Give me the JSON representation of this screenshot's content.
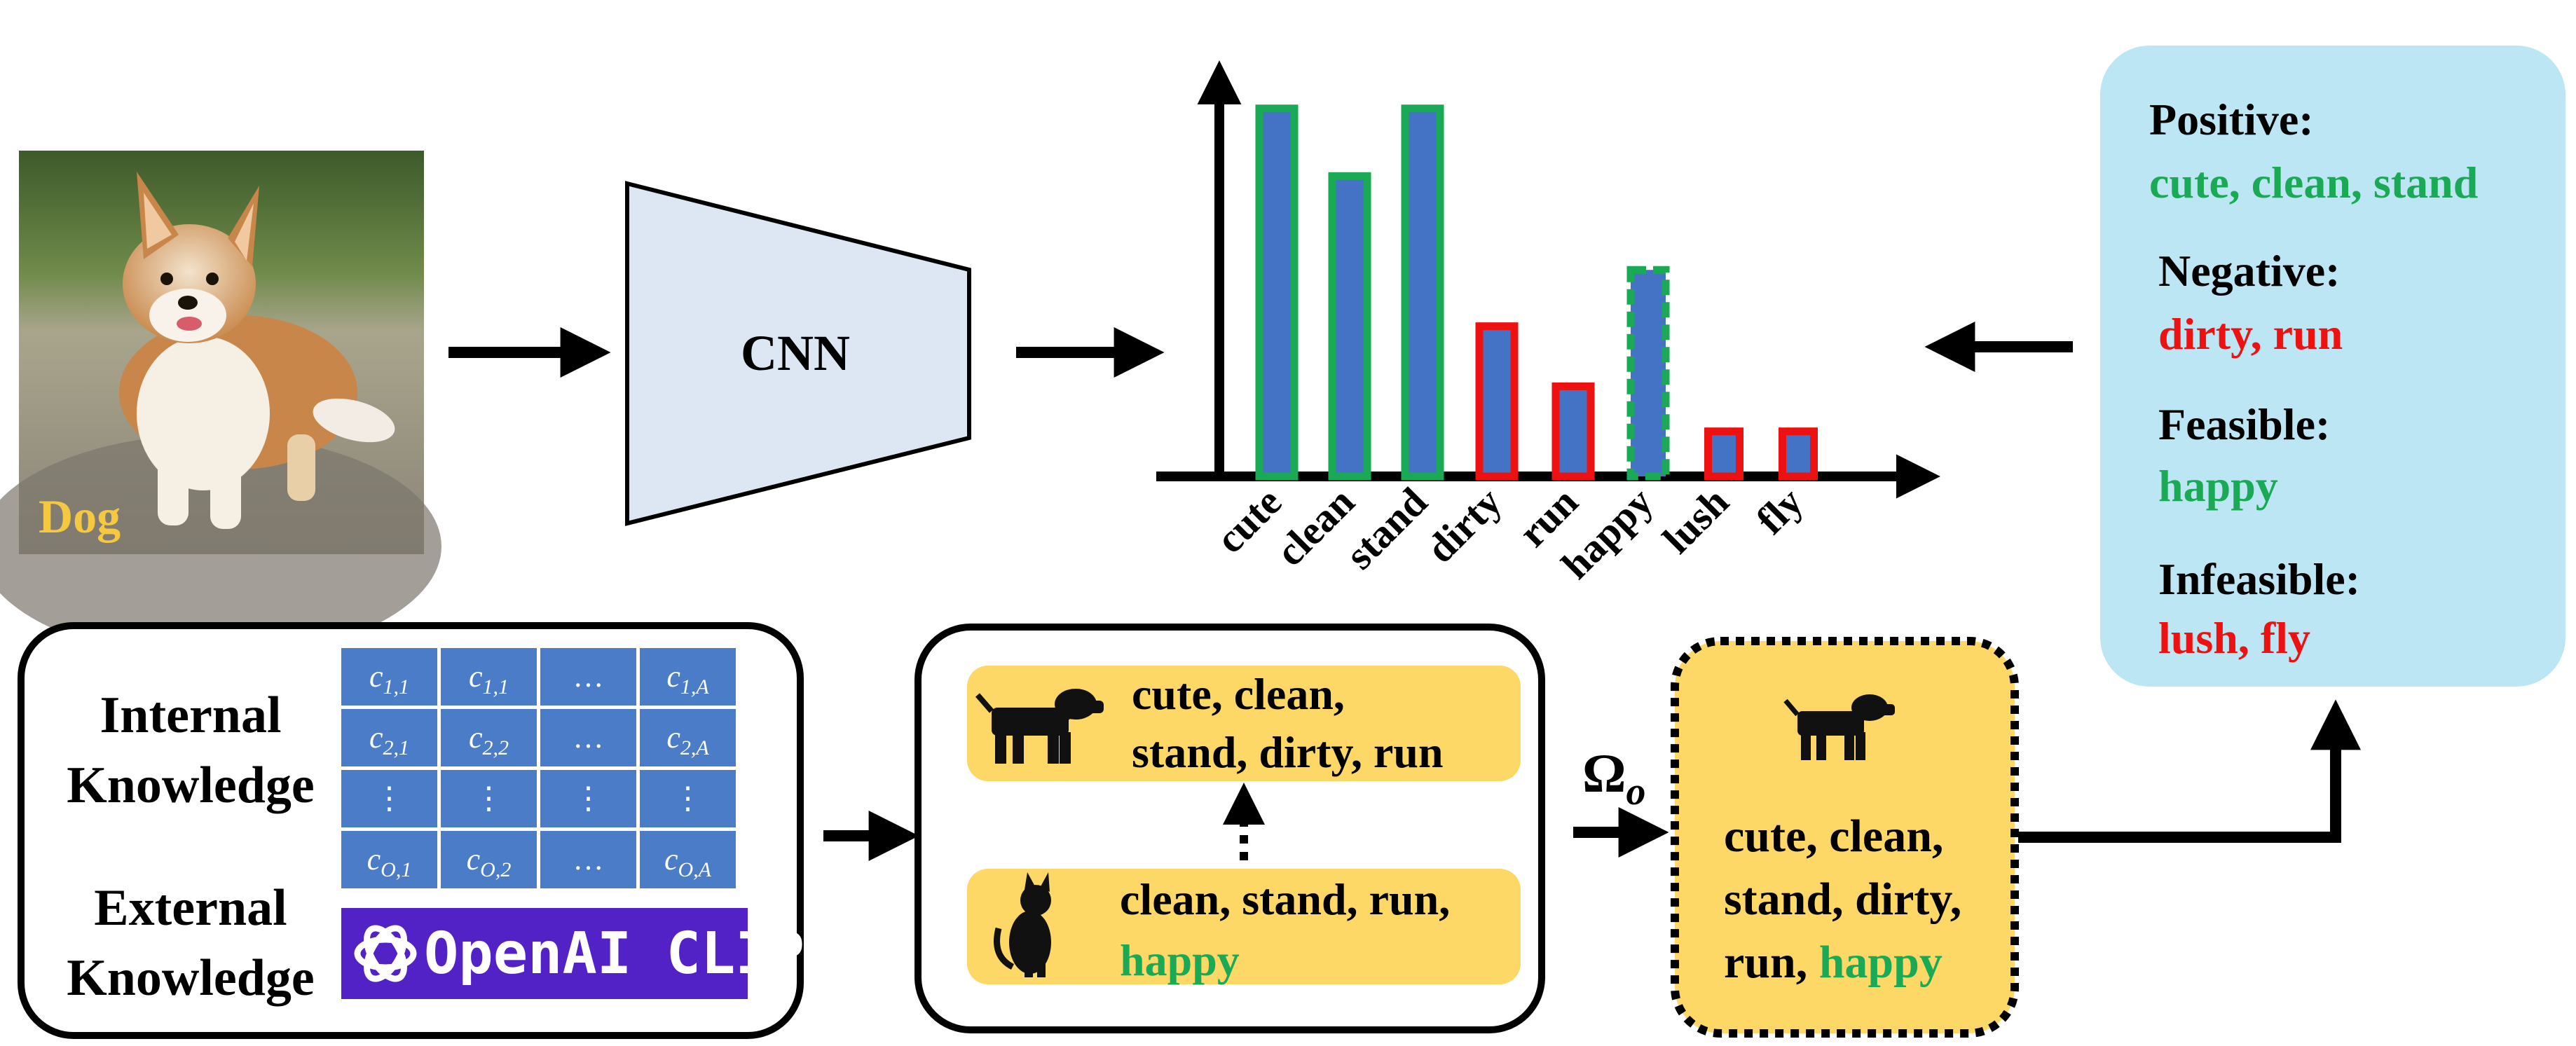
{
  "colors": {
    "bar_fill": "#4472c4",
    "green": "#1aaa55",
    "red": "#ee1111",
    "yellow": "#fdd866",
    "light_blue": "#bde6f4",
    "cnn_fill": "#dde7f3",
    "clip_purple": "#5322c7",
    "grid_blue": "#4a7cc8",
    "dog_label": "#f5c842"
  },
  "image": {
    "label": "Dog"
  },
  "cnn": {
    "label": "CNN"
  },
  "chart_data": {
    "type": "bar",
    "categories": [
      "cute",
      "clean",
      "stand",
      "dirty",
      "run",
      "happy",
      "lush",
      "fly"
    ],
    "values": [
      0.98,
      0.8,
      0.98,
      0.4,
      0.24,
      0.55,
      0.12,
      0.12
    ],
    "outline": [
      "positive",
      "positive",
      "positive",
      "negative",
      "negative",
      "feasible",
      "infeasible",
      "infeasible"
    ],
    "title": "",
    "xlabel": "",
    "ylabel": "",
    "ylim": [
      0,
      1.2
    ],
    "grid": false,
    "legend": "none"
  },
  "summary": {
    "positive_label": "Positive:",
    "positive_items": "cute, clean, stand",
    "negative_label": "Negative:",
    "negative_items": "dirty, run",
    "feasible_label": "Feasible:",
    "feasible_items": "happy",
    "infeasible_label": "Infeasible:",
    "infeasible_items": "lush, fly"
  },
  "knowledge": {
    "internal_line1": "Internal",
    "internal_line2": "Knowledge",
    "external_line1": "External",
    "external_line2": "Knowledge",
    "matrix": {
      "row1": [
        "c",
        "c",
        "…",
        "c"
      ],
      "row1_sub": [
        "1,1",
        "1,1",
        "",
        "1,A"
      ],
      "row2": [
        "c",
        "c",
        "…",
        "c"
      ],
      "row2_sub": [
        "2,1",
        "2,2",
        "",
        "2,A"
      ],
      "row3": [
        "⋮",
        "⋮",
        "⋮",
        "⋮"
      ],
      "row4": [
        "c",
        "c",
        "…",
        "c"
      ],
      "row4_sub": [
        "O,1",
        "O,2",
        "",
        "O,A"
      ]
    },
    "clip_label": "OpenAI CLIP"
  },
  "transfer": {
    "dog_line1": "cute, clean,",
    "dog_line2": "stand, dirty, run",
    "cat_line1": "clean, stand, run,",
    "cat_line2": "happy"
  },
  "omega": {
    "symbol": "Ω",
    "sub": "o"
  },
  "result": {
    "line1": "cute, clean,",
    "line2": "stand, dirty,",
    "line3_prefix": "run, ",
    "line3_highlight": "happy"
  }
}
